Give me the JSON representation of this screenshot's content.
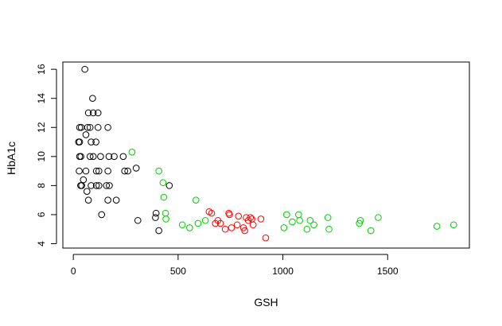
{
  "chart_data": {
    "type": "scatter",
    "title": "",
    "xlabel": "GSH",
    "ylabel": "HbA1c",
    "xlim": [
      -50,
      1890
    ],
    "ylim": [
      3.7,
      16.5
    ],
    "xticks": [
      0,
      500,
      1000,
      1500
    ],
    "yticks": [
      4,
      6,
      8,
      10,
      12,
      14,
      16
    ],
    "grid": false,
    "legend": "none",
    "marker": "open-circle",
    "series": [
      {
        "color": "#000000",
        "points": [
          {
            "x": 55,
            "y": 16
          },
          {
            "x": 92,
            "y": 14
          },
          {
            "x": 30,
            "y": 12
          },
          {
            "x": 38,
            "y": 12
          },
          {
            "x": 68,
            "y": 12
          },
          {
            "x": 80,
            "y": 12
          },
          {
            "x": 118,
            "y": 12
          },
          {
            "x": 165,
            "y": 12
          },
          {
            "x": 72,
            "y": 13
          },
          {
            "x": 95,
            "y": 13
          },
          {
            "x": 118,
            "y": 13
          },
          {
            "x": 60,
            "y": 11.5
          },
          {
            "x": 25,
            "y": 11
          },
          {
            "x": 30,
            "y": 11
          },
          {
            "x": 85,
            "y": 11
          },
          {
            "x": 108,
            "y": 11
          },
          {
            "x": 30,
            "y": 10
          },
          {
            "x": 36,
            "y": 10
          },
          {
            "x": 80,
            "y": 10
          },
          {
            "x": 95,
            "y": 10
          },
          {
            "x": 130,
            "y": 10
          },
          {
            "x": 170,
            "y": 10
          },
          {
            "x": 195,
            "y": 10
          },
          {
            "x": 238,
            "y": 10
          },
          {
            "x": 28,
            "y": 9
          },
          {
            "x": 60,
            "y": 9
          },
          {
            "x": 110,
            "y": 9
          },
          {
            "x": 122,
            "y": 9
          },
          {
            "x": 165,
            "y": 9
          },
          {
            "x": 245,
            "y": 9
          },
          {
            "x": 260,
            "y": 9
          },
          {
            "x": 300,
            "y": 9.2
          },
          {
            "x": 35,
            "y": 8
          },
          {
            "x": 40,
            "y": 8
          },
          {
            "x": 48,
            "y": 8.4
          },
          {
            "x": 85,
            "y": 8
          },
          {
            "x": 110,
            "y": 8
          },
          {
            "x": 122,
            "y": 8
          },
          {
            "x": 158,
            "y": 8
          },
          {
            "x": 172,
            "y": 8
          },
          {
            "x": 65,
            "y": 7.6
          },
          {
            "x": 72,
            "y": 7
          },
          {
            "x": 165,
            "y": 7
          },
          {
            "x": 205,
            "y": 7
          },
          {
            "x": 135,
            "y": 6
          },
          {
            "x": 308,
            "y": 5.6
          },
          {
            "x": 392,
            "y": 5.8
          },
          {
            "x": 395,
            "y": 6.1
          },
          {
            "x": 408,
            "y": 4.9
          },
          {
            "x": 458,
            "y": 8
          }
        ]
      },
      {
        "color": "#00cc00",
        "points": [
          {
            "x": 280,
            "y": 10.3
          },
          {
            "x": 408,
            "y": 9
          },
          {
            "x": 428,
            "y": 8.2
          },
          {
            "x": 432,
            "y": 7.2
          },
          {
            "x": 440,
            "y": 6.1
          },
          {
            "x": 442,
            "y": 5.7
          },
          {
            "x": 520,
            "y": 5.3
          },
          {
            "x": 555,
            "y": 5.1
          },
          {
            "x": 585,
            "y": 7
          },
          {
            "x": 595,
            "y": 5.4
          },
          {
            "x": 630,
            "y": 5.6
          },
          {
            "x": 1005,
            "y": 5.1
          },
          {
            "x": 1018,
            "y": 6
          },
          {
            "x": 1045,
            "y": 5.5
          },
          {
            "x": 1075,
            "y": 6
          },
          {
            "x": 1080,
            "y": 5.6
          },
          {
            "x": 1115,
            "y": 5
          },
          {
            "x": 1130,
            "y": 5.6
          },
          {
            "x": 1148,
            "y": 5.3
          },
          {
            "x": 1215,
            "y": 5.8
          },
          {
            "x": 1220,
            "y": 5
          },
          {
            "x": 1365,
            "y": 5.4
          },
          {
            "x": 1370,
            "y": 5.6
          },
          {
            "x": 1420,
            "y": 4.9
          },
          {
            "x": 1455,
            "y": 5.8
          },
          {
            "x": 1735,
            "y": 5.2
          },
          {
            "x": 1815,
            "y": 5.3
          }
        ]
      },
      {
        "color": "#ff0000",
        "points": [
          {
            "x": 648,
            "y": 6.2
          },
          {
            "x": 660,
            "y": 6.1
          },
          {
            "x": 678,
            "y": 5.4
          },
          {
            "x": 690,
            "y": 5.6
          },
          {
            "x": 702,
            "y": 5.4
          },
          {
            "x": 725,
            "y": 5
          },
          {
            "x": 742,
            "y": 6.1
          },
          {
            "x": 745,
            "y": 6
          },
          {
            "x": 755,
            "y": 5.1
          },
          {
            "x": 782,
            "y": 5.3
          },
          {
            "x": 788,
            "y": 5.9
          },
          {
            "x": 812,
            "y": 5.1
          },
          {
            "x": 818,
            "y": 4.9
          },
          {
            "x": 825,
            "y": 5.8
          },
          {
            "x": 835,
            "y": 5.6
          },
          {
            "x": 845,
            "y": 5.8
          },
          {
            "x": 852,
            "y": 5.7
          },
          {
            "x": 858,
            "y": 5.3
          },
          {
            "x": 895,
            "y": 5.7
          },
          {
            "x": 918,
            "y": 4.4
          }
        ]
      }
    ]
  }
}
